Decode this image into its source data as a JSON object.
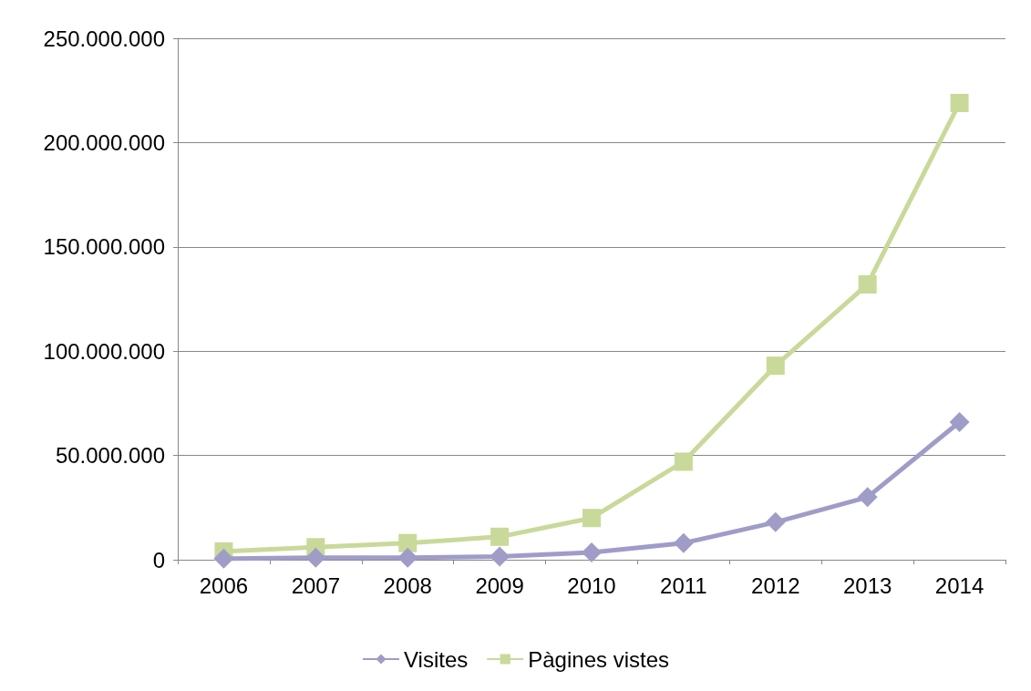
{
  "chart_data": {
    "type": "line",
    "categories": [
      "2006",
      "2007",
      "2008",
      "2009",
      "2010",
      "2011",
      "2012",
      "2013",
      "2014"
    ],
    "series": [
      {
        "name": "Visites",
        "color": "#a09cc8",
        "marker": "diamond",
        "values": [
          500000,
          1000000,
          1000000,
          1500000,
          3500000,
          8000000,
          18000000,
          30000000,
          66000000
        ]
      },
      {
        "name": "Pàgines vistes",
        "color": "#c8d99a",
        "marker": "square",
        "values": [
          4000000,
          6000000,
          8000000,
          11000000,
          20000000,
          47000000,
          93000000,
          132000000,
          219000000
        ]
      }
    ],
    "ylim": [
      0,
      250000000
    ],
    "yticks": [
      {
        "value": 0,
        "label": "0"
      },
      {
        "value": 50000000,
        "label": "50.000.000"
      },
      {
        "value": 100000000,
        "label": "100.000.000"
      },
      {
        "value": 150000000,
        "label": "150.000.000"
      },
      {
        "value": 200000000,
        "label": "200.000.000"
      },
      {
        "value": 250000000,
        "label": "250.000.000"
      }
    ],
    "grid": "y",
    "legend": "bottom",
    "line_style": "solid"
  }
}
